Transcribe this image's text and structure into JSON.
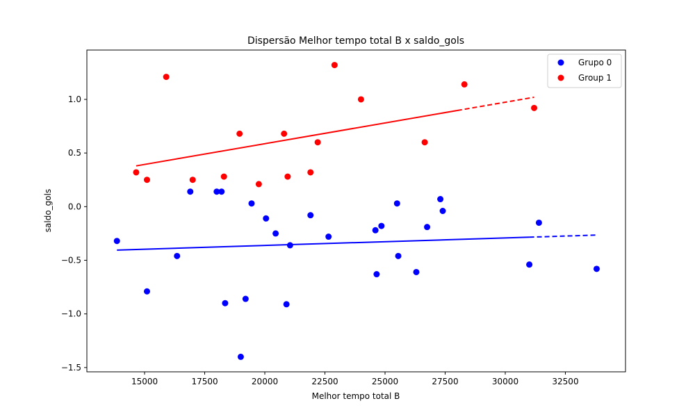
{
  "chart_data": {
    "type": "scatter",
    "title": "Dispersão Melhor tempo total B x saldo_gols",
    "xlabel": "Melhor tempo total B",
    "ylabel": "saldo_gols",
    "xlim": [
      12600,
      35000
    ],
    "ylim": [
      -1.54,
      1.46
    ],
    "xticks": [
      15000,
      17500,
      20000,
      22500,
      25000,
      27500,
      30000,
      32500
    ],
    "xtick_labels": [
      "15000",
      "17500",
      "20000",
      "22500",
      "25000",
      "27500",
      "30000",
      "32500"
    ],
    "yticks": [
      -1.5,
      -1.0,
      -0.5,
      0.0,
      0.5,
      1.0
    ],
    "ytick_labels": [
      "−1.5",
      "−1.0",
      "−0.5",
      "0.0",
      "0.5",
      "1.0"
    ],
    "grid": false,
    "legend_position": "top-right",
    "series": [
      {
        "name": "Grupo 0",
        "color": "#0000ff",
        "points": [
          [
            13850,
            -0.32
          ],
          [
            15100,
            -0.79
          ],
          [
            16350,
            -0.46
          ],
          [
            16900,
            0.14
          ],
          [
            18000,
            0.14
          ],
          [
            18200,
            0.14
          ],
          [
            18350,
            -0.9
          ],
          [
            19000,
            -1.4
          ],
          [
            19200,
            -0.86
          ],
          [
            19450,
            0.03
          ],
          [
            20050,
            -0.11
          ],
          [
            20450,
            -0.25
          ],
          [
            20900,
            -0.91
          ],
          [
            21050,
            -0.36
          ],
          [
            21900,
            -0.08
          ],
          [
            22650,
            -0.28
          ],
          [
            24600,
            -0.22
          ],
          [
            24650,
            -0.63
          ],
          [
            24850,
            -0.18
          ],
          [
            25500,
            0.03
          ],
          [
            25550,
            -0.46
          ],
          [
            26300,
            -0.61
          ],
          [
            26750,
            -0.19
          ],
          [
            27300,
            0.07
          ],
          [
            27400,
            -0.04
          ],
          [
            31000,
            -0.54
          ],
          [
            31400,
            -0.15
          ],
          [
            33800,
            -0.58
          ]
        ],
        "trendline": {
          "x": [
            13850,
            33800
          ],
          "y": [
            -0.405,
            -0.265
          ],
          "solid_until": 31000,
          "style": "dashed"
        }
      },
      {
        "name": "Group 1",
        "color": "#ff0000",
        "points": [
          [
            14650,
            0.32
          ],
          [
            15100,
            0.25
          ],
          [
            15900,
            1.21
          ],
          [
            17000,
            0.25
          ],
          [
            18300,
            0.28
          ],
          [
            18950,
            0.68
          ],
          [
            19750,
            0.21
          ],
          [
            20800,
            0.68
          ],
          [
            20950,
            0.28
          ],
          [
            21900,
            0.32
          ],
          [
            22200,
            0.6
          ],
          [
            22900,
            1.32
          ],
          [
            24000,
            1.0
          ],
          [
            26650,
            0.6
          ],
          [
            28300,
            1.14
          ],
          [
            31200,
            0.92
          ]
        ],
        "trendline": {
          "x": [
            14650,
            31200
          ],
          "y": [
            0.38,
            1.02
          ],
          "solid_until": 28000,
          "style": "dashed"
        }
      }
    ]
  }
}
